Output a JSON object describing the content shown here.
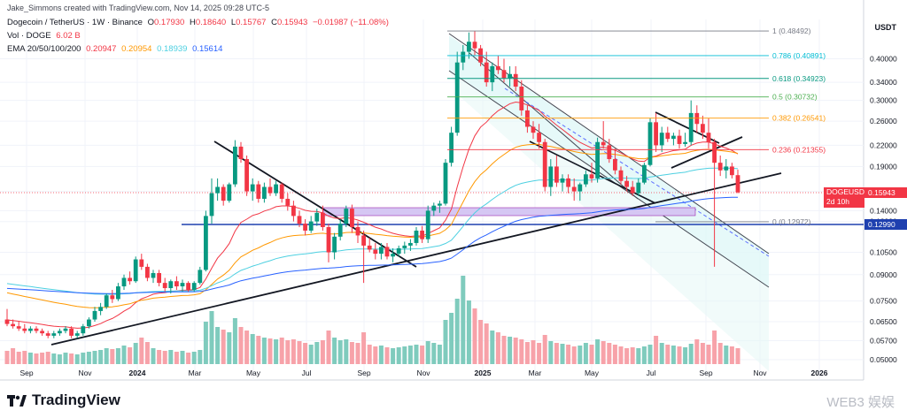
{
  "header": {
    "credit": "Jake_Simmons created with TradingView.com, Nov 14, 2025 09:28 UTC-5",
    "symbol": "Dogecoin / TetherUS · 1W · Binance",
    "open_label": "O",
    "open": "0.17930",
    "high_label": "H",
    "high": "0.18640",
    "low_label": "L",
    "low": "0.15767",
    "close_label": "C",
    "close": "0.15943",
    "change": "−0.01987 (−11.08%)",
    "vol_label": "Vol · DOGE",
    "vol": "6.02 B",
    "ema_label": "EMA 20/50/100/200",
    "ema20": "0.20947",
    "ema50": "0.20954",
    "ema100": "0.18939",
    "ema200": "0.15614"
  },
  "currency": "USDT",
  "price_tag": {
    "symbol": "DOGEUSDT",
    "value": "0.15943",
    "countdown": "2d 10h"
  },
  "level_tag": "0.12990",
  "brand": "TradingView",
  "watermark": "WEB3 娱娱",
  "colors": {
    "up": "#089981",
    "down": "#f23645",
    "up_vol": "#7fcbbd",
    "down_vol": "#f7a2a9"
  },
  "chart_data": {
    "type": "candlestick",
    "x_labels": [
      "Sep",
      "Nov",
      "2024",
      "Mar",
      "May",
      "Jul",
      "Sep",
      "Nov",
      "2025",
      "Mar",
      "May",
      "Jul",
      "Sep",
      "Nov",
      "2026"
    ],
    "y_scale": "log",
    "y_ticks": [
      "0.40000",
      "0.34000",
      "0.30000",
      "0.26000",
      "0.22000",
      "0.19000",
      "0.16000",
      "0.14000",
      "0.12990",
      "0.10500",
      "0.09000",
      "0.07500",
      "0.06500",
      "0.05700",
      "0.05000"
    ],
    "fib_levels": [
      {
        "label": "1 (0.48492)",
        "value": 0.48492,
        "color": "#787b86"
      },
      {
        "label": "0.786 (0.40891)",
        "value": 0.40891,
        "color": "#00bcd4"
      },
      {
        "label": "0.618 (0.34923)",
        "value": 0.34923,
        "color": "#089981"
      },
      {
        "label": "0.5 (0.30732)",
        "value": 0.30732,
        "color": "#4caf50"
      },
      {
        "label": "0.382 (0.26541)",
        "value": 0.26541,
        "color": "#ff9800"
      },
      {
        "label": "0.236 (0.21355)",
        "value": 0.21355,
        "color": "#f23645"
      },
      {
        "label": "0 (0.12972)",
        "value": 0.12972,
        "color": "#787b86"
      }
    ],
    "candles": [
      [
        0.066,
        0.071,
        0.063,
        0.064
      ],
      [
        0.064,
        0.066,
        0.062,
        0.063
      ],
      [
        0.063,
        0.065,
        0.061,
        0.062
      ],
      [
        0.062,
        0.064,
        0.06,
        0.061
      ],
      [
        0.061,
        0.063,
        0.06,
        0.062
      ],
      [
        0.062,
        0.063,
        0.06,
        0.061
      ],
      [
        0.061,
        0.062,
        0.059,
        0.06
      ],
      [
        0.06,
        0.061,
        0.058,
        0.059
      ],
      [
        0.059,
        0.061,
        0.058,
        0.06
      ],
      [
        0.06,
        0.062,
        0.059,
        0.061
      ],
      [
        0.061,
        0.063,
        0.06,
        0.062
      ],
      [
        0.062,
        0.063,
        0.058,
        0.059
      ],
      [
        0.059,
        0.061,
        0.058,
        0.06
      ],
      [
        0.06,
        0.064,
        0.059,
        0.063
      ],
      [
        0.063,
        0.067,
        0.062,
        0.066
      ],
      [
        0.066,
        0.072,
        0.065,
        0.07
      ],
      [
        0.07,
        0.074,
        0.068,
        0.072
      ],
      [
        0.072,
        0.079,
        0.071,
        0.078
      ],
      [
        0.078,
        0.081,
        0.074,
        0.076
      ],
      [
        0.076,
        0.085,
        0.075,
        0.083
      ],
      [
        0.083,
        0.09,
        0.081,
        0.088
      ],
      [
        0.088,
        0.092,
        0.084,
        0.086
      ],
      [
        0.086,
        0.102,
        0.085,
        0.1
      ],
      [
        0.1,
        0.104,
        0.093,
        0.095
      ],
      [
        0.095,
        0.097,
        0.086,
        0.088
      ],
      [
        0.088,
        0.093,
        0.085,
        0.091
      ],
      [
        0.091,
        0.093,
        0.083,
        0.085
      ],
      [
        0.085,
        0.088,
        0.08,
        0.082
      ],
      [
        0.082,
        0.087,
        0.079,
        0.086
      ],
      [
        0.086,
        0.089,
        0.081,
        0.083
      ],
      [
        0.083,
        0.087,
        0.08,
        0.085
      ],
      [
        0.085,
        0.086,
        0.08,
        0.081
      ],
      [
        0.081,
        0.086,
        0.08,
        0.085
      ],
      [
        0.085,
        0.095,
        0.084,
        0.093
      ],
      [
        0.093,
        0.14,
        0.092,
        0.135
      ],
      [
        0.135,
        0.175,
        0.128,
        0.158
      ],
      [
        0.158,
        0.175,
        0.15,
        0.165
      ],
      [
        0.165,
        0.168,
        0.145,
        0.15
      ],
      [
        0.15,
        0.17,
        0.148,
        0.168
      ],
      [
        0.168,
        0.228,
        0.165,
        0.218
      ],
      [
        0.218,
        0.225,
        0.195,
        0.2
      ],
      [
        0.2,
        0.205,
        0.155,
        0.16
      ],
      [
        0.16,
        0.175,
        0.15,
        0.168
      ],
      [
        0.168,
        0.172,
        0.148,
        0.152
      ],
      [
        0.152,
        0.17,
        0.148,
        0.165
      ],
      [
        0.165,
        0.175,
        0.155,
        0.158
      ],
      [
        0.158,
        0.172,
        0.155,
        0.168
      ],
      [
        0.168,
        0.17,
        0.148,
        0.152
      ],
      [
        0.152,
        0.158,
        0.14,
        0.145
      ],
      [
        0.145,
        0.15,
        0.13,
        0.135
      ],
      [
        0.135,
        0.14,
        0.125,
        0.128
      ],
      [
        0.128,
        0.132,
        0.118,
        0.122
      ],
      [
        0.122,
        0.135,
        0.12,
        0.13
      ],
      [
        0.13,
        0.142,
        0.126,
        0.138
      ],
      [
        0.138,
        0.145,
        0.122,
        0.125
      ],
      [
        0.125,
        0.128,
        0.098,
        0.105
      ],
      [
        0.105,
        0.12,
        0.1,
        0.117
      ],
      [
        0.117,
        0.132,
        0.114,
        0.128
      ],
      [
        0.128,
        0.145,
        0.125,
        0.142
      ],
      [
        0.142,
        0.146,
        0.12,
        0.125
      ],
      [
        0.125,
        0.13,
        0.112,
        0.118
      ],
      [
        0.118,
        0.122,
        0.085,
        0.11
      ],
      [
        0.11,
        0.116,
        0.105,
        0.107
      ],
      [
        0.107,
        0.112,
        0.1,
        0.104
      ],
      [
        0.104,
        0.112,
        0.1,
        0.109
      ],
      [
        0.109,
        0.112,
        0.1,
        0.102
      ],
      [
        0.102,
        0.108,
        0.098,
        0.104
      ],
      [
        0.104,
        0.11,
        0.102,
        0.108
      ],
      [
        0.108,
        0.113,
        0.104,
        0.11
      ],
      [
        0.11,
        0.115,
        0.106,
        0.112
      ],
      [
        0.112,
        0.125,
        0.11,
        0.122
      ],
      [
        0.122,
        0.126,
        0.112,
        0.115
      ],
      [
        0.115,
        0.145,
        0.112,
        0.14
      ],
      [
        0.14,
        0.148,
        0.135,
        0.145
      ],
      [
        0.145,
        0.15,
        0.138,
        0.147
      ],
      [
        0.147,
        0.2,
        0.145,
        0.195
      ],
      [
        0.195,
        0.25,
        0.19,
        0.24
      ],
      [
        0.24,
        0.42,
        0.235,
        0.39
      ],
      [
        0.39,
        0.44,
        0.37,
        0.42
      ],
      [
        0.42,
        0.48,
        0.4,
        0.45
      ],
      [
        0.45,
        0.485,
        0.41,
        0.43
      ],
      [
        0.43,
        0.44,
        0.38,
        0.39
      ],
      [
        0.39,
        0.42,
        0.33,
        0.34
      ],
      [
        0.34,
        0.39,
        0.32,
        0.38
      ],
      [
        0.38,
        0.41,
        0.36,
        0.37
      ],
      [
        0.37,
        0.4,
        0.34,
        0.35
      ],
      [
        0.35,
        0.38,
        0.33,
        0.36
      ],
      [
        0.36,
        0.38,
        0.32,
        0.33
      ],
      [
        0.33,
        0.345,
        0.27,
        0.28
      ],
      [
        0.28,
        0.29,
        0.24,
        0.25
      ],
      [
        0.25,
        0.26,
        0.23,
        0.24
      ],
      [
        0.24,
        0.255,
        0.215,
        0.225
      ],
      [
        0.225,
        0.23,
        0.16,
        0.165
      ],
      [
        0.165,
        0.2,
        0.155,
        0.19
      ],
      [
        0.19,
        0.205,
        0.165,
        0.17
      ],
      [
        0.17,
        0.18,
        0.16,
        0.175
      ],
      [
        0.175,
        0.18,
        0.158,
        0.165
      ],
      [
        0.165,
        0.175,
        0.15,
        0.16
      ],
      [
        0.16,
        0.17,
        0.15,
        0.168
      ],
      [
        0.168,
        0.185,
        0.165,
        0.18
      ],
      [
        0.18,
        0.195,
        0.17,
        0.175
      ],
      [
        0.175,
        0.232,
        0.17,
        0.225
      ],
      [
        0.225,
        0.26,
        0.215,
        0.22
      ],
      [
        0.22,
        0.23,
        0.195,
        0.2
      ],
      [
        0.2,
        0.215,
        0.18,
        0.185
      ],
      [
        0.185,
        0.19,
        0.168,
        0.172
      ],
      [
        0.172,
        0.178,
        0.16,
        0.165
      ],
      [
        0.165,
        0.172,
        0.155,
        0.158
      ],
      [
        0.158,
        0.175,
        0.155,
        0.17
      ],
      [
        0.17,
        0.195,
        0.168,
        0.192
      ],
      [
        0.192,
        0.265,
        0.19,
        0.258
      ],
      [
        0.258,
        0.275,
        0.21,
        0.22
      ],
      [
        0.22,
        0.25,
        0.21,
        0.24
      ],
      [
        0.24,
        0.25,
        0.225,
        0.23
      ],
      [
        0.23,
        0.24,
        0.22,
        0.235
      ],
      [
        0.235,
        0.245,
        0.215,
        0.222
      ],
      [
        0.222,
        0.24,
        0.218,
        0.225
      ],
      [
        0.225,
        0.3,
        0.22,
        0.275
      ],
      [
        0.275,
        0.29,
        0.24,
        0.255
      ],
      [
        0.255,
        0.27,
        0.23,
        0.24
      ],
      [
        0.24,
        0.265,
        0.215,
        0.225
      ],
      [
        0.225,
        0.23,
        0.095,
        0.195
      ],
      [
        0.195,
        0.205,
        0.178,
        0.185
      ],
      [
        0.185,
        0.2,
        0.175,
        0.19
      ],
      [
        0.19,
        0.195,
        0.175,
        0.179
      ],
      [
        0.179,
        0.186,
        0.158,
        0.159
      ]
    ],
    "volumes": [
      15,
      18,
      14,
      15,
      13,
      12,
      13,
      14,
      12,
      11,
      13,
      12,
      11,
      13,
      14,
      15,
      16,
      18,
      17,
      18,
      21,
      19,
      24,
      30,
      25,
      18,
      16,
      15,
      16,
      14,
      15,
      13,
      14,
      16,
      48,
      60,
      42,
      39,
      36,
      52,
      42,
      38,
      34,
      32,
      30,
      29,
      28,
      30,
      27,
      28,
      26,
      24,
      22,
      25,
      27,
      38,
      30,
      27,
      28,
      25,
      24,
      36,
      22,
      20,
      21,
      19,
      18,
      19,
      20,
      21,
      22,
      21,
      26,
      24,
      22,
      50,
      58,
      74,
      100,
      72,
      63,
      50,
      46,
      38,
      36,
      32,
      31,
      30,
      28,
      25,
      27,
      24,
      33,
      26,
      24,
      23,
      22,
      20,
      21,
      24,
      22,
      28,
      26,
      24,
      22,
      20,
      18,
      19,
      18,
      20,
      22,
      32,
      24,
      22,
      21,
      20,
      19,
      23,
      28,
      24,
      22,
      38,
      24,
      21,
      20,
      18
    ]
  }
}
